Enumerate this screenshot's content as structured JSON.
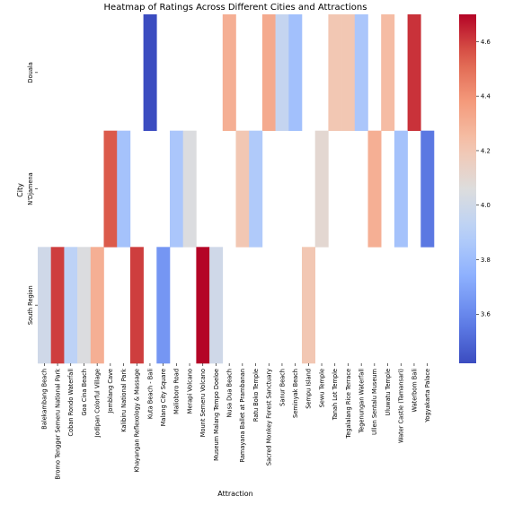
{
  "chart_data": {
    "type": "heatmap",
    "title": "Heatmap of Ratings Across Different Cities and Attractions",
    "xlabel": "Attraction",
    "ylabel": "City",
    "rows": [
      "Douala",
      "N'Djamena",
      "South Region"
    ],
    "columns": [
      "Balekambang Beach",
      "Bromo Tengger Semeru National Park",
      "Coban Rondo Waterfall",
      "Goa Cina Beach",
      "Jodipan Colorful Village",
      "Jomblang Cave",
      "Kalibiru National Park",
      "Khayangan Reflexology & Massage",
      "Kuta Beach - Bali",
      "Malang City Square",
      "Malioboro Road",
      "Merapi Volcano",
      "Mount Semeru Volcano",
      "Museum Malang Tempo Doeloe",
      "Nusa Dua Beach",
      "Ramayana Ballet at Prambanan",
      "Ratu Boko Temple",
      "Sacred Monkey Forest Sanctuary",
      "Sanur Beach",
      "Seminyak Beach",
      "Sempu Island",
      "Sewu Temple",
      "Tanah Lot Temple",
      "Tegalalang Rice Terrace",
      "Tegenungan Waterfall",
      "Ullen Sentalu Museum",
      "Uluwatu Temple",
      "Water Castle (Tamansari)",
      "Waterbom Bali",
      "Yogyakarta Palace"
    ],
    "values": [
      [
        null,
        null,
        null,
        null,
        null,
        null,
        null,
        null,
        3.42,
        null,
        null,
        null,
        null,
        null,
        4.3,
        null,
        null,
        4.32,
        3.95,
        3.82,
        null,
        null,
        4.2,
        4.2,
        3.85,
        null,
        4.25,
        null,
        4.62,
        null
      ],
      [
        null,
        null,
        null,
        null,
        null,
        4.55,
        3.83,
        null,
        null,
        null,
        3.85,
        4.05,
        null,
        null,
        null,
        4.2,
        3.87,
        null,
        null,
        null,
        null,
        4.1,
        null,
        null,
        null,
        4.3,
        null,
        3.83,
        null,
        3.55
      ],
      [
        4.0,
        4.6,
        3.92,
        4.05,
        4.3,
        null,
        null,
        4.6,
        null,
        3.65,
        null,
        null,
        4.7,
        4.0,
        null,
        null,
        null,
        null,
        null,
        null,
        4.2,
        null,
        null,
        null,
        null,
        null,
        null,
        null,
        null,
        null
      ]
    ],
    "colorbar": {
      "colormap": "coolwarm",
      "vmin": 3.42,
      "vmax": 4.7,
      "ticks": [
        3.6,
        3.8,
        4.0,
        4.2,
        4.4,
        4.6
      ]
    }
  }
}
